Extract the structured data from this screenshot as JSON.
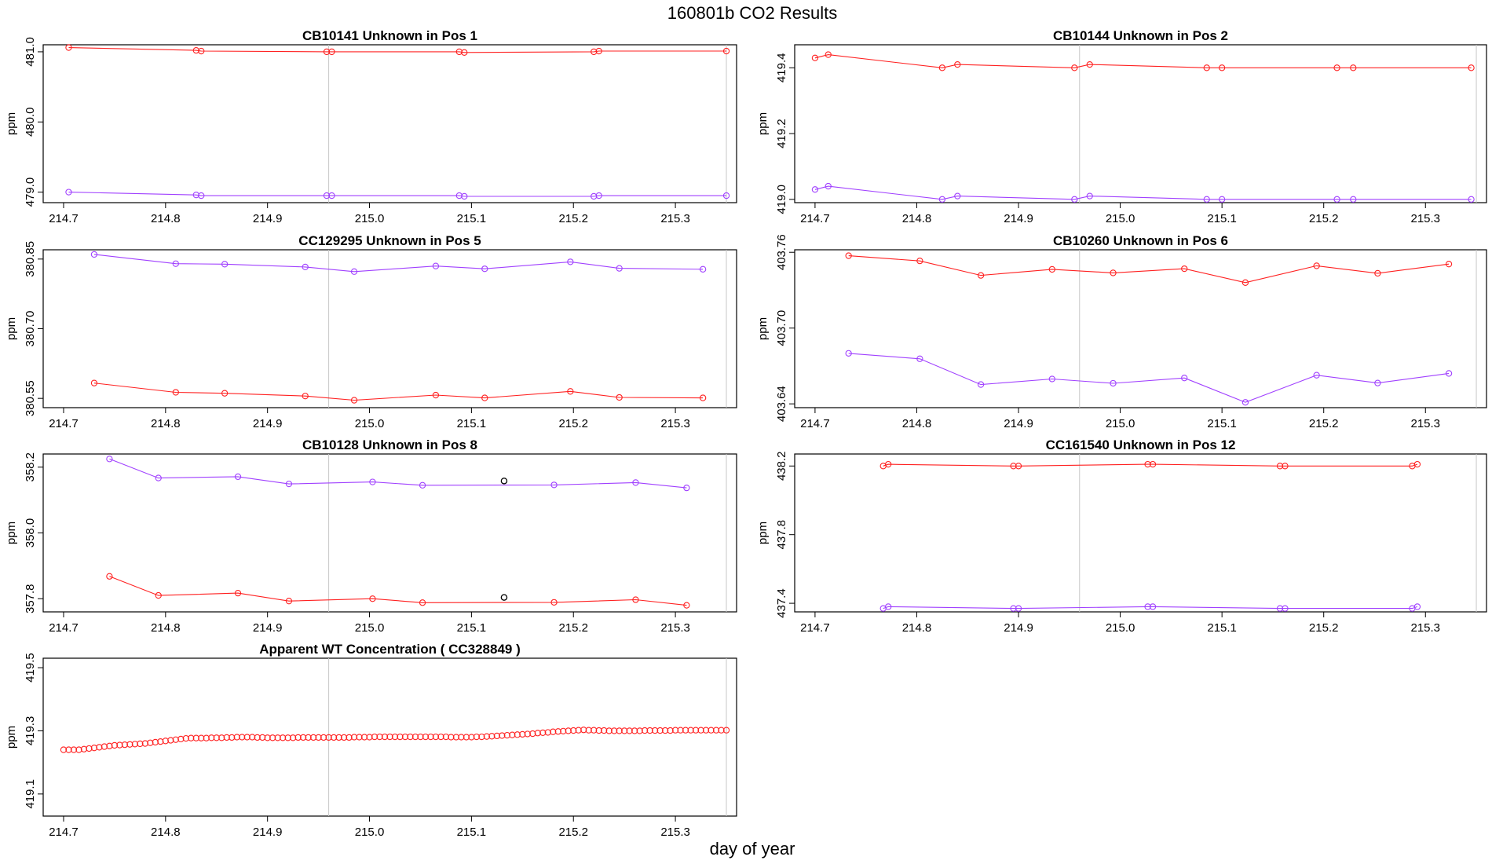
{
  "figure": {
    "title": "160801b  CO2 Results",
    "xlabel": "day of year"
  },
  "colors": {
    "series_red": "#ff2020",
    "series_purple": "#a040ff",
    "flagged": "#000000",
    "vline": "#c8c8c8",
    "frame": "#000000"
  },
  "chart_data": [
    {
      "type": "line",
      "title": "CB10141    Unknown in Pos 1",
      "ylabel": "ppm",
      "xlim": [
        214.68,
        215.36
      ],
      "ylim": [
        478.85,
        481.1
      ],
      "xticks": [
        "214.7",
        "214.8",
        "214.9",
        "215.0",
        "215.1",
        "215.2",
        "215.3"
      ],
      "yticks": [
        "479.0",
        "480.0",
        "481.0"
      ],
      "vlines": [
        214.96,
        215.35
      ],
      "series": [
        {
          "color": "series_red",
          "x": [
            214.705,
            214.83,
            214.835,
            214.958,
            214.963,
            215.088,
            215.093,
            215.22,
            215.225,
            215.35
          ],
          "y": [
            481.06,
            481.02,
            481.01,
            481.0,
            481.0,
            481.0,
            480.99,
            481.0,
            481.01,
            481.01
          ]
        },
        {
          "color": "series_purple",
          "x": [
            214.705,
            214.83,
            214.835,
            214.958,
            214.963,
            215.088,
            215.093,
            215.22,
            215.225,
            215.35
          ],
          "y": [
            479.0,
            478.96,
            478.95,
            478.95,
            478.95,
            478.95,
            478.94,
            478.94,
            478.95,
            478.95
          ]
        }
      ]
    },
    {
      "type": "line",
      "title": "CB10144    Unknown in Pos 2",
      "ylabel": "ppm",
      "xlim": [
        214.68,
        215.36
      ],
      "ylim": [
        418.99,
        419.47
      ],
      "xticks": [
        "214.7",
        "214.8",
        "214.9",
        "215.0",
        "215.1",
        "215.2",
        "215.3"
      ],
      "yticks": [
        "419.0",
        "419.2",
        "419.4"
      ],
      "vlines": [
        214.96,
        215.35
      ],
      "series": [
        {
          "color": "series_red",
          "x": [
            214.7,
            214.713,
            214.825,
            214.84,
            214.955,
            214.97,
            215.085,
            215.1,
            215.213,
            215.229,
            215.345
          ],
          "y": [
            419.43,
            419.44,
            419.4,
            419.41,
            419.4,
            419.41,
            419.4,
            419.4,
            419.4,
            419.4,
            419.4
          ]
        },
        {
          "color": "series_purple",
          "x": [
            214.7,
            214.713,
            214.825,
            214.84,
            214.955,
            214.97,
            215.085,
            215.1,
            215.213,
            215.229,
            215.345
          ],
          "y": [
            419.03,
            419.04,
            419.0,
            419.01,
            419.0,
            419.01,
            419.0,
            419.0,
            419.0,
            419.0,
            419.0
          ]
        }
      ]
    },
    {
      "type": "line",
      "title": "CC129295    Unknown in Pos 5",
      "ylabel": "ppm",
      "xlim": [
        214.68,
        215.36
      ],
      "ylim": [
        380.53,
        380.87
      ],
      "xticks": [
        "214.7",
        "214.8",
        "214.9",
        "215.0",
        "215.1",
        "215.2",
        "215.3"
      ],
      "yticks": [
        "380.55",
        "380.70",
        "380.85"
      ],
      "vlines": [
        214.96,
        215.35
      ],
      "series": [
        {
          "color": "series_purple",
          "x": [
            214.73,
            214.81,
            214.858,
            214.937,
            214.985,
            215.065,
            215.113,
            215.197,
            215.245,
            215.327
          ],
          "y": [
            380.86,
            380.84,
            380.839,
            380.833,
            380.823,
            380.835,
            380.829,
            380.844,
            380.83,
            380.828
          ]
        },
        {
          "color": "series_red",
          "x": [
            214.73,
            214.81,
            214.858,
            214.937,
            214.985,
            215.065,
            215.113,
            215.197,
            215.245,
            215.327
          ],
          "y": [
            380.583,
            380.563,
            380.561,
            380.555,
            380.546,
            380.557,
            380.551,
            380.565,
            380.552,
            380.551
          ]
        }
      ]
    },
    {
      "type": "line",
      "title": "CB10260    Unknown in Pos 6",
      "ylabel": "ppm",
      "xlim": [
        214.68,
        215.36
      ],
      "ylim": [
        403.637,
        403.762
      ],
      "xticks": [
        "214.7",
        "214.8",
        "214.9",
        "215.0",
        "215.1",
        "215.2",
        "215.3"
      ],
      "yticks": [
        "403.64",
        "403.70",
        "403.76"
      ],
      "vlines": [
        214.96,
        215.35
      ],
      "series": [
        {
          "color": "series_red",
          "x": [
            214.733,
            214.803,
            214.863,
            214.933,
            214.993,
            215.063,
            215.123,
            215.193,
            215.253,
            215.323
          ],
          "y": [
            403.7573,
            403.7532,
            403.7417,
            403.7465,
            403.7437,
            403.747,
            403.736,
            403.7493,
            403.7434,
            403.7507
          ]
        },
        {
          "color": "series_purple",
          "x": [
            214.733,
            214.803,
            214.863,
            214.933,
            214.993,
            215.063,
            215.123,
            215.193,
            215.253,
            215.323
          ],
          "y": [
            403.68,
            403.6757,
            403.6553,
            403.6597,
            403.6563,
            403.6605,
            403.6412,
            403.6627,
            403.6565,
            403.6641
          ]
        }
      ]
    },
    {
      "type": "line",
      "title": "CB10128    Unknown in Pos 8",
      "ylabel": "ppm",
      "xlim": [
        214.68,
        215.36
      ],
      "ylim": [
        357.76,
        358.24
      ],
      "xticks": [
        "214.7",
        "214.8",
        "214.9",
        "215.0",
        "215.1",
        "215.2",
        "215.3"
      ],
      "yticks": [
        "357.8",
        "358.0",
        "358.2"
      ],
      "vlines": [
        214.96,
        215.35
      ],
      "series": [
        {
          "color": "series_purple",
          "x": [
            214.745,
            214.793,
            214.871,
            214.921,
            215.003,
            215.052,
            215.181,
            215.261,
            215.311
          ],
          "y": [
            358.225,
            358.167,
            358.171,
            358.149,
            358.155,
            358.145,
            358.146,
            358.153,
            358.137
          ]
        },
        {
          "color": "series_red",
          "x": [
            214.745,
            214.793,
            214.871,
            214.921,
            215.003,
            215.052,
            215.181,
            215.261,
            215.311
          ],
          "y": [
            357.868,
            357.81,
            357.817,
            357.793,
            357.8,
            357.788,
            357.789,
            357.797,
            357.78
          ]
        }
      ],
      "flagged_points": [
        {
          "x": 215.132,
          "y": 358.158
        },
        {
          "x": 215.132,
          "y": 357.804
        }
      ]
    },
    {
      "type": "line",
      "title": "CC161540    Unknown in Pos 12",
      "ylabel": "ppm",
      "xlim": [
        214.68,
        215.36
      ],
      "ylim": [
        437.35,
        438.27
      ],
      "xticks": [
        "214.7",
        "214.8",
        "214.9",
        "215.0",
        "215.1",
        "215.2",
        "215.3"
      ],
      "yticks": [
        "437.4",
        "437.8",
        "438.2"
      ],
      "vlines": [
        214.96,
        215.35
      ],
      "series": [
        {
          "color": "series_red",
          "x": [
            214.767,
            214.772,
            214.895,
            214.9,
            215.027,
            215.032,
            215.157,
            215.162,
            215.287,
            215.292
          ],
          "y": [
            438.2,
            438.21,
            438.2,
            438.2,
            438.21,
            438.21,
            438.2,
            438.2,
            438.2,
            438.21
          ]
        },
        {
          "color": "series_purple",
          "x": [
            214.767,
            214.772,
            214.895,
            214.9,
            215.027,
            215.032,
            215.157,
            215.162,
            215.287,
            215.292
          ],
          "y": [
            437.37,
            437.38,
            437.37,
            437.37,
            437.38,
            437.38,
            437.37,
            437.37,
            437.37,
            437.38
          ]
        }
      ]
    },
    {
      "type": "scatter",
      "title": "Apparent WT Concentration ( CC328849 )",
      "ylabel": "ppm",
      "xlim": [
        214.68,
        215.36
      ],
      "ylim": [
        419.03,
        419.53
      ],
      "xticks": [
        "214.7",
        "214.8",
        "214.9",
        "215.0",
        "215.1",
        "215.2",
        "215.3"
      ],
      "yticks": [
        "419.1",
        "419.3",
        "419.5"
      ],
      "vlines": [
        214.96,
        215.35
      ],
      "series": [
        {
          "color": "series_red",
          "x": [
            214.7,
            214.705,
            214.71,
            214.715,
            214.72,
            214.725,
            214.73,
            214.735,
            214.74,
            214.745,
            214.75,
            214.755,
            214.76,
            214.765,
            214.77,
            214.775,
            214.78,
            214.785,
            214.79,
            214.795,
            214.8,
            214.805,
            214.81,
            214.815,
            214.82,
            214.825,
            214.83,
            214.835,
            214.84,
            214.845,
            214.85,
            214.855,
            214.86,
            214.865,
            214.87,
            214.875,
            214.88,
            214.885,
            214.89,
            214.895,
            214.9,
            214.905,
            214.91,
            214.915,
            214.92,
            214.925,
            214.93,
            214.935,
            214.94,
            214.945,
            214.95,
            214.955,
            214.96,
            214.965,
            214.97,
            214.975,
            214.98,
            214.985,
            214.99,
            214.995,
            215.0,
            215.005,
            215.01,
            215.015,
            215.02,
            215.025,
            215.03,
            215.035,
            215.04,
            215.045,
            215.05,
            215.055,
            215.06,
            215.065,
            215.07,
            215.075,
            215.08,
            215.085,
            215.09,
            215.095,
            215.1,
            215.105,
            215.11,
            215.115,
            215.12,
            215.125,
            215.13,
            215.135,
            215.14,
            215.145,
            215.15,
            215.155,
            215.16,
            215.165,
            215.17,
            215.175,
            215.18,
            215.185,
            215.19,
            215.195,
            215.2,
            215.205,
            215.21,
            215.215,
            215.22,
            215.225,
            215.23,
            215.235,
            215.24,
            215.245,
            215.25,
            215.255,
            215.26,
            215.265,
            215.27,
            215.275,
            215.28,
            215.285,
            215.29,
            215.295,
            215.3,
            215.305,
            215.31,
            215.315,
            215.32,
            215.325,
            215.33,
            215.335,
            215.34,
            215.345,
            215.35
          ],
          "y": [
            419.24,
            419.24,
            419.24,
            419.24,
            419.242,
            419.244,
            419.246,
            419.248,
            419.25,
            419.252,
            419.254,
            419.255,
            419.256,
            419.257,
            419.258,
            419.259,
            419.26,
            419.262,
            419.264,
            419.266,
            419.268,
            419.27,
            419.272,
            419.274,
            419.276,
            419.277,
            419.277,
            419.277,
            419.277,
            419.278,
            419.278,
            419.278,
            419.279,
            419.279,
            419.28,
            419.28,
            419.28,
            419.28,
            419.279,
            419.279,
            419.278,
            419.278,
            419.278,
            419.278,
            419.278,
            419.278,
            419.279,
            419.279,
            419.279,
            419.279,
            419.279,
            419.279,
            419.279,
            419.279,
            419.279,
            419.279,
            419.279,
            419.28,
            419.28,
            419.28,
            419.28,
            419.281,
            419.281,
            419.281,
            419.281,
            419.281,
            419.281,
            419.281,
            419.281,
            419.281,
            419.281,
            419.281,
            419.281,
            419.281,
            419.281,
            419.281,
            419.28,
            419.28,
            419.28,
            419.28,
            419.28,
            419.281,
            419.281,
            419.282,
            419.283,
            419.284,
            419.285,
            419.286,
            419.287,
            419.288,
            419.289,
            419.29,
            419.291,
            419.293,
            419.294,
            419.295,
            419.297,
            419.298,
            419.299,
            419.3,
            419.301,
            419.302,
            419.303,
            419.302,
            419.302,
            419.301,
            419.301,
            419.3,
            419.3,
            419.3,
            419.3,
            419.3,
            419.3,
            419.3,
            419.301,
            419.301,
            419.301,
            419.301,
            419.301,
            419.301,
            419.302,
            419.302,
            419.302,
            419.302,
            419.302,
            419.302,
            419.302,
            419.302,
            419.302,
            419.302,
            419.302
          ]
        }
      ]
    }
  ]
}
